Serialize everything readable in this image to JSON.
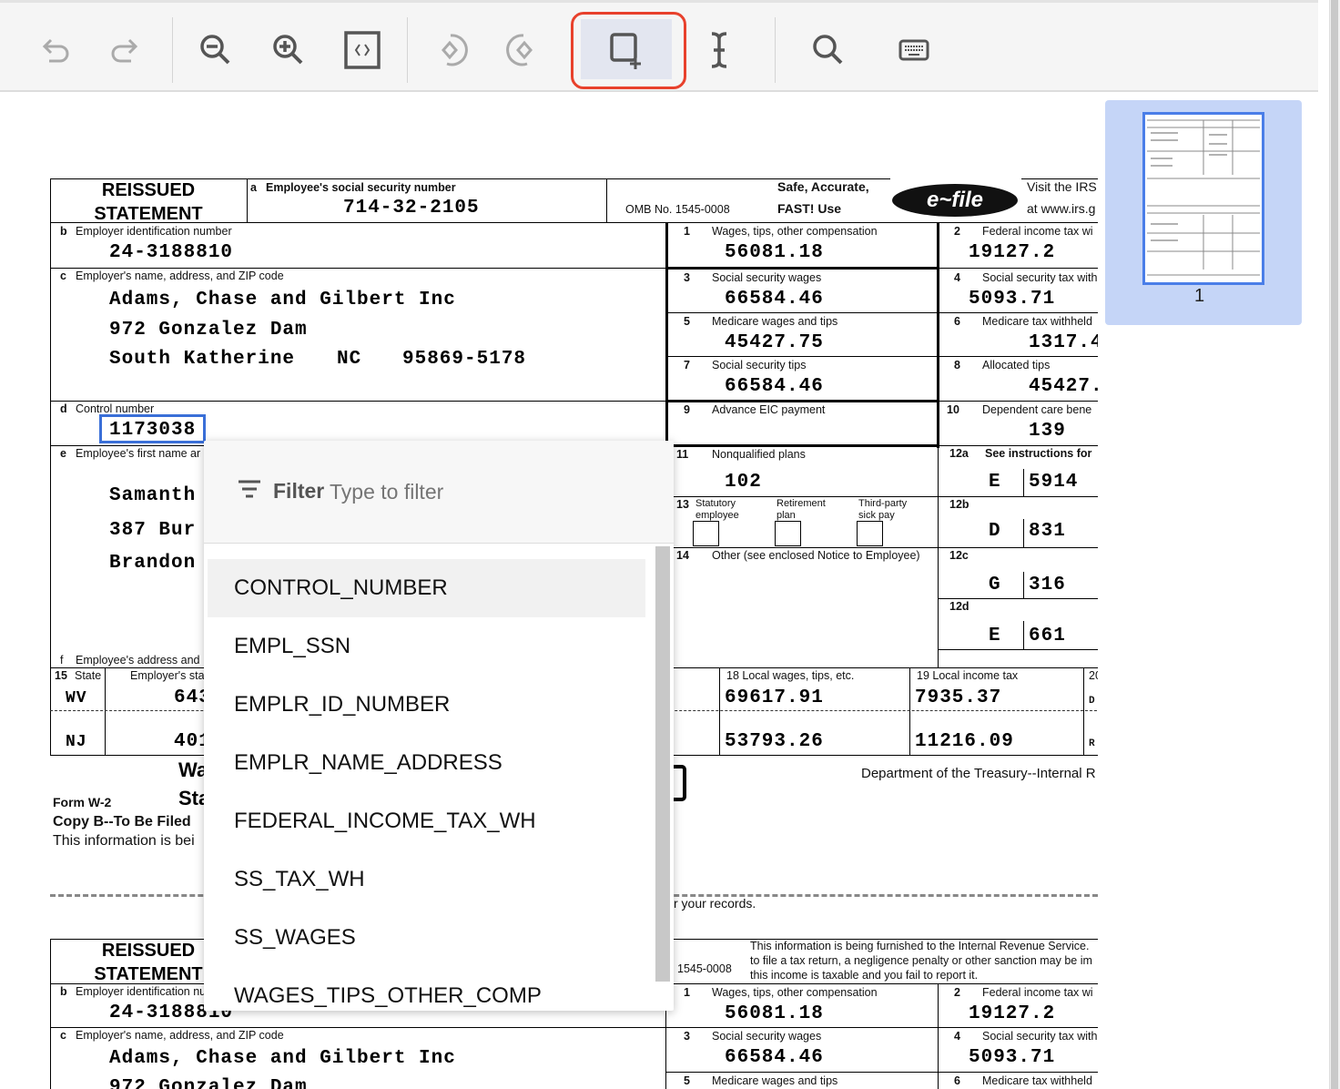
{
  "toolbar": {
    "buttons": [
      {
        "name": "undo",
        "icon": "undo-icon",
        "enabled": false
      },
      {
        "name": "redo",
        "icon": "redo-icon",
        "enabled": false
      },
      {
        "name": "zoom-out",
        "icon": "zoom-out-icon",
        "enabled": true
      },
      {
        "name": "zoom-in",
        "icon": "zoom-in-icon",
        "enabled": true
      },
      {
        "name": "fit-page",
        "icon": "fit-page-icon",
        "enabled": true
      },
      {
        "name": "rotate-left",
        "icon": "rotate-left-icon",
        "enabled": false
      },
      {
        "name": "rotate-right",
        "icon": "rotate-right-icon",
        "enabled": false
      },
      {
        "name": "add-box",
        "icon": "add-bounding-box-icon",
        "enabled": true,
        "active": true
      },
      {
        "name": "text-cursor",
        "icon": "text-select-icon",
        "enabled": true
      },
      {
        "name": "search",
        "icon": "search-icon",
        "enabled": true
      },
      {
        "name": "keyboard",
        "icon": "keyboard-icon",
        "enabled": true
      }
    ],
    "highlight_color": "#e8412c"
  },
  "thumbnail": {
    "page_number": "1"
  },
  "form": {
    "reissued": "REISSUED",
    "statement": "STATEMENT",
    "a_label": "a",
    "a_text": "Employee's social security number",
    "ssn": "714-32-2105",
    "omb": "OMB No. 1545-0008",
    "safe": "Safe, Accurate,",
    "fast": "FAST!  Use",
    "efile_logo": "IRS e-file",
    "visit1": "Visit the IRS",
    "visit2": "at www.irs.g",
    "b_label": "b",
    "b_text": "Employer identification number",
    "ein": "24-3188810",
    "c_label": "c",
    "c_text": "Employer's name, address, and ZIP code",
    "emp_name": "Adams, Chase and Gilbert Inc",
    "emp_addr1": "972 Gonzalez Dam",
    "emp_city": "South Katherine",
    "emp_state": "NC",
    "emp_zip": "95869-5178",
    "d_label": "d",
    "d_text": "Control number",
    "control": "1173038",
    "e_label": "e",
    "e_text": "Employee's first name ar",
    "ee_name": "Samanth",
    "ee_addr": "387 Bur",
    "ee_city": "Brandon",
    "f_label": "f",
    "f_text": "Employee's address and",
    "boxes": [
      {
        "n": "1",
        "label": "Wages, tips, other compensation",
        "value": "56081.18"
      },
      {
        "n": "2",
        "label": "Federal income tax wi",
        "value": "19127.2"
      },
      {
        "n": "3",
        "label": "Social security wages",
        "value": "66584.46"
      },
      {
        "n": "4",
        "label": "Social security tax with",
        "value": "5093.71"
      },
      {
        "n": "5",
        "label": "Medicare wages and tips",
        "value": "45427.75"
      },
      {
        "n": "6",
        "label": "Medicare tax withheld",
        "value": "1317.4"
      },
      {
        "n": "7",
        "label": "Social security tips",
        "value": "66584.46"
      },
      {
        "n": "8",
        "label": "Allocated tips",
        "value": "45427."
      },
      {
        "n": "9",
        "label": "Advance EIC payment",
        "value": ""
      },
      {
        "n": "10",
        "label": "Dependent care bene",
        "value": "139"
      },
      {
        "n": "11",
        "label": "Nonqualified plans",
        "value": "102"
      }
    ],
    "b12": [
      {
        "n": "12a",
        "label": "See instructions for",
        "code": "E",
        "value": "5914"
      },
      {
        "n": "12b",
        "code": "D",
        "value": "831"
      },
      {
        "n": "12c",
        "code": "G",
        "value": "316"
      },
      {
        "n": "12d",
        "code": "E",
        "value": "661"
      }
    ],
    "b13": {
      "n": "13",
      "statutory": "Statutory",
      "employee": "employee",
      "retirement": "Retirement",
      "plan": "plan",
      "thirdparty": "Third-party",
      "sickpay": "sick pay"
    },
    "b14": {
      "n": "14",
      "label": "Other (see enclosed Notice to Employee)"
    },
    "state_hdr": {
      "n": "15",
      "state": "State",
      "emp_state_id": "Employer's sta",
      "local_wages": "18  Local wages, tips, etc.",
      "local_tax": "19  Local income tax",
      "b20": "20"
    },
    "state_rows": [
      {
        "state": "WV",
        "id": "643",
        "local_wages": "69617.91",
        "local_tax": "7935.37",
        "locality": "D"
      },
      {
        "state": "NJ",
        "id": "401",
        "local_wages": "53793.26",
        "local_tax": "11216.09",
        "locality": "R"
      }
    ],
    "wa": "Wa",
    "sta": "Sta",
    "form_w2": "Form  W-2",
    "copy_b": "Copy B--To Be Filed",
    "this_info": "This information is bei",
    "dept": "Department of the Treasury--Internal R",
    "your_records": "r your records.",
    "furnished1": "This information is being furnished to the Internal Revenue Service.",
    "furnished2": "to file a tax return, a negligence penalty or other sanction may be im",
    "furnished3": "this income is taxable and you fail to report it.",
    "omb2": "1545-0008"
  },
  "dropdown": {
    "filter_label": "Filter",
    "filter_placeholder": "Type to filter",
    "items": [
      "CONTROL_NUMBER",
      "EMPL_SSN",
      "EMPLR_ID_NUMBER",
      "EMPLR_NAME_ADDRESS",
      "FEDERAL_INCOME_TAX_WH",
      "SS_TAX_WH",
      "SS_WAGES",
      "WAGES_TIPS_OTHER_COMP"
    ],
    "highlighted": "CONTROL_NUMBER"
  }
}
